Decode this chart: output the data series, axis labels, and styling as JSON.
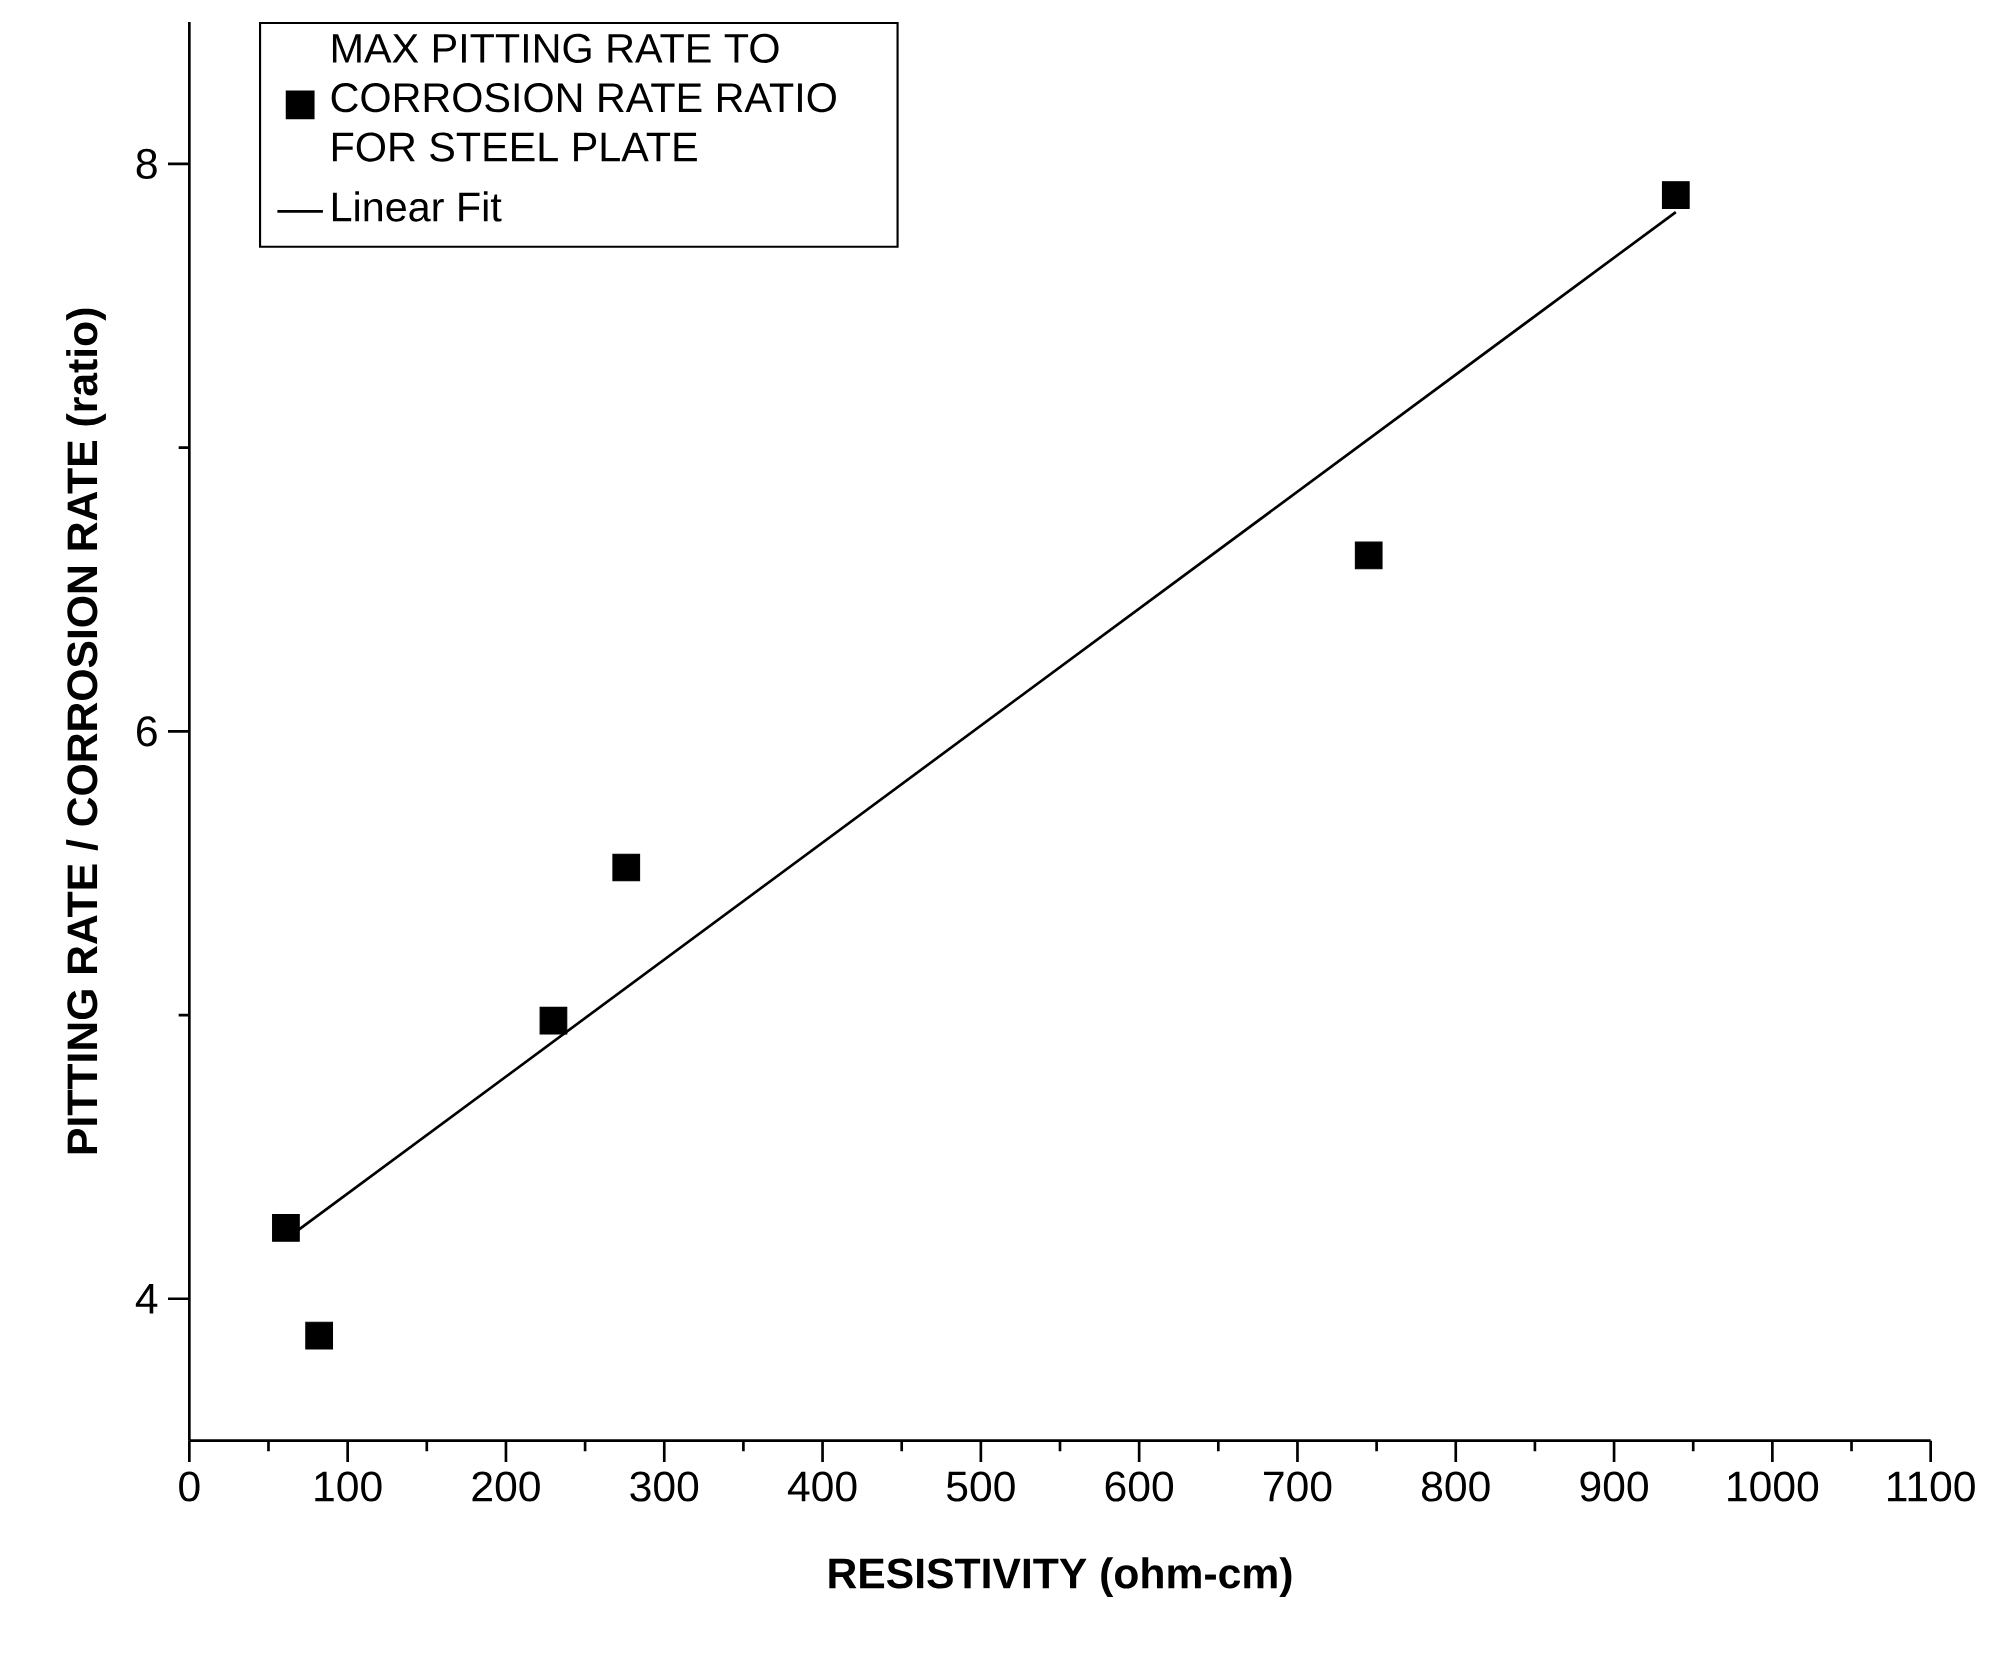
{
  "chart_data": {
    "type": "scatter",
    "xlabel": "RESISTIVITY (ohm-cm)",
    "ylabel": "PITTING RATE / CORROSION RATE (ratio)",
    "xlim": [
      0,
      1100
    ],
    "ylim": [
      3.5,
      8.5
    ],
    "xticks": [
      0,
      100,
      200,
      300,
      400,
      500,
      600,
      700,
      800,
      900,
      1000,
      1100
    ],
    "yticks": [
      4,
      6,
      8
    ],
    "legend": "top left",
    "series": [
      {
        "name": "MAX PITTING RATE TO CORROSION RATE RATIO FOR STEEL PLATE",
        "color": "#000000",
        "marker": "square",
        "x": [
          61,
          82,
          230,
          276,
          745,
          939
        ],
        "values": [
          4.25,
          3.87,
          4.98,
          5.52,
          6.62,
          7.89
        ]
      },
      {
        "name": "Linear Fit",
        "type": "line",
        "color": "#000000",
        "line_style": "solid",
        "marker": "none",
        "x": [
          61,
          939
        ],
        "values": [
          4.21,
          7.83
        ]
      }
    ]
  }
}
